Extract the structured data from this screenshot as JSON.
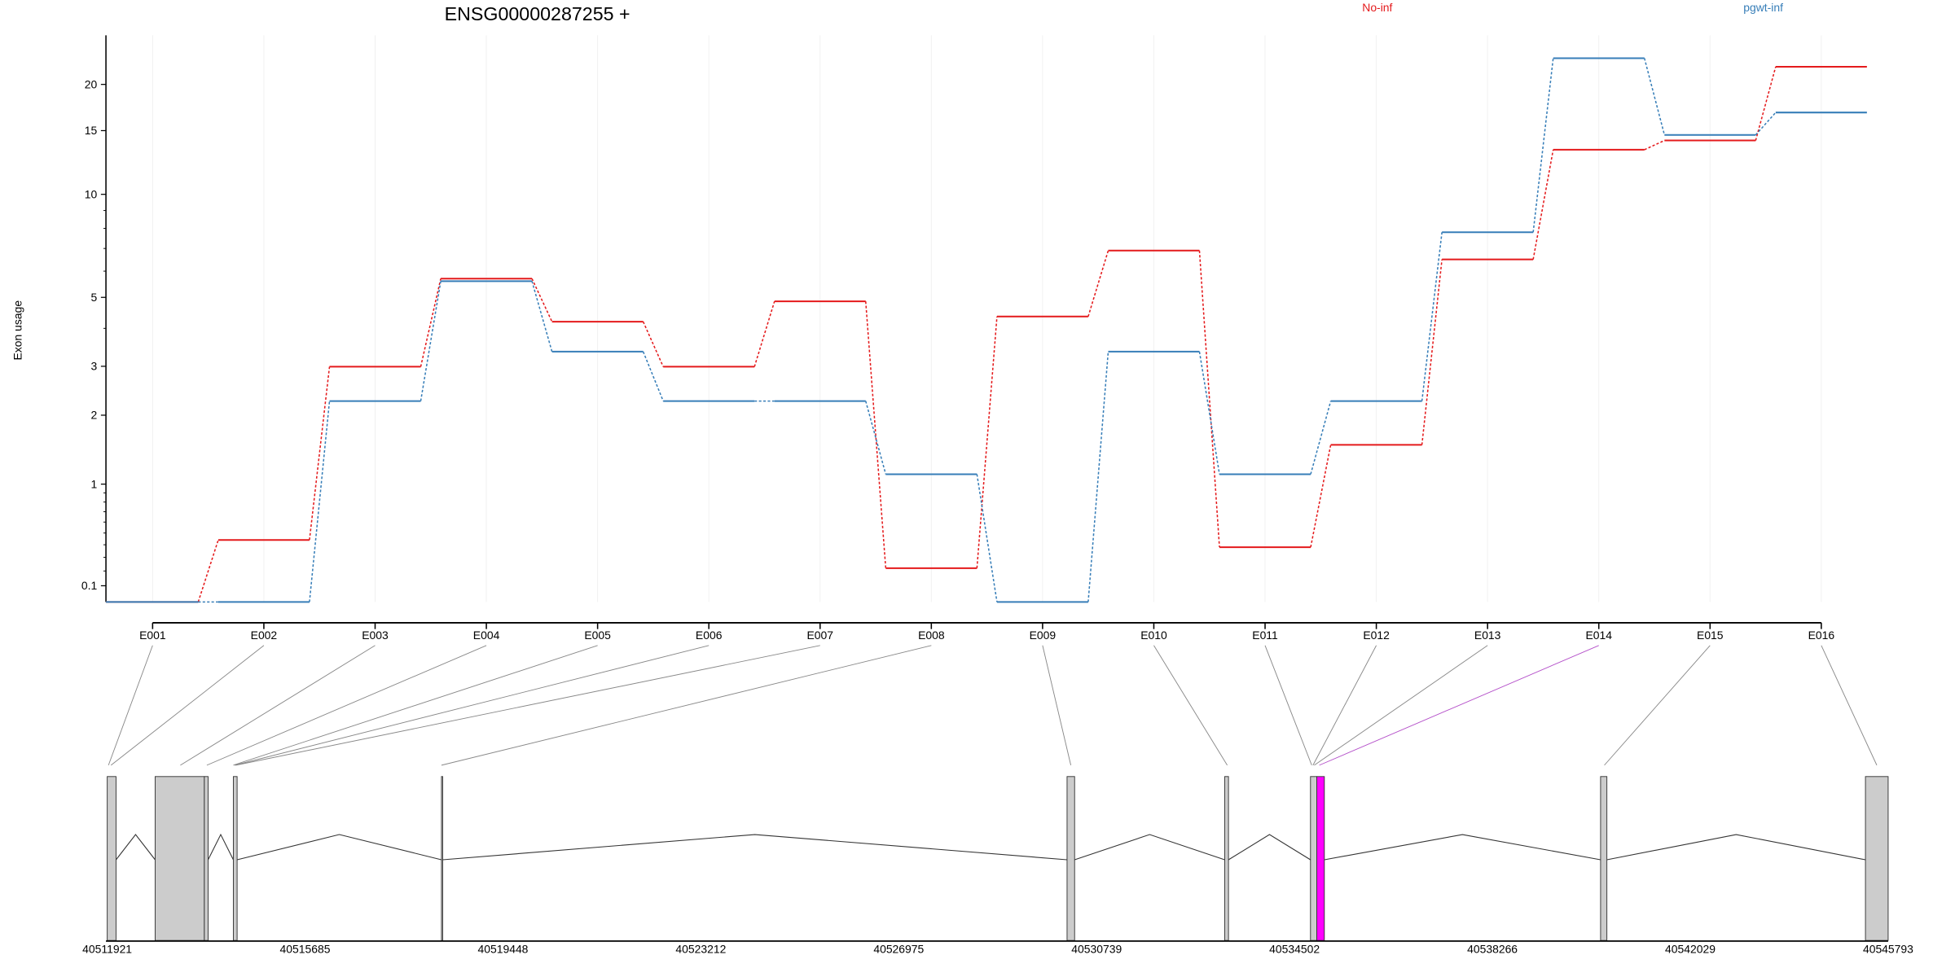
{
  "chart_data": {
    "type": "line",
    "title": "ENSG00000287255 +",
    "ylabel": "Exon usage",
    "xlabel": "",
    "y_scale": "log10(y+1)",
    "ylim": [
      0,
      26
    ],
    "y_ticks": [
      0.1,
      1,
      2,
      3,
      5,
      10,
      15,
      20
    ],
    "y_tick_labels": [
      "0.1",
      "1",
      "2",
      "3",
      "5",
      "10",
      "15",
      "20"
    ],
    "categories": [
      "E001",
      "E002",
      "E003",
      "E004",
      "E005",
      "E006",
      "E007",
      "E008",
      "E009",
      "E010",
      "E011",
      "E012",
      "E013",
      "E014",
      "E015",
      "E016"
    ],
    "series": [
      {
        "name": "No-inf",
        "color": "#e41a1c",
        "values": [
          0,
          0.44,
          2.99,
          5.7,
          4.2,
          2.99,
          4.86,
          0.22,
          4.36,
          6.9,
          0.38,
          1.52,
          6.5,
          13.3,
          14.1,
          22.3
        ]
      },
      {
        "name": "pgwt-inf",
        "color": "#377eb8",
        "values": [
          0,
          0,
          2.26,
          5.6,
          3.36,
          2.26,
          2.26,
          1.12,
          0,
          3.36,
          1.12,
          2.26,
          7.8,
          23.5,
          14.6,
          16.8
        ]
      }
    ],
    "legend": [
      "No-inf",
      "pgwt-inf"
    ],
    "legend_position": "top",
    "highlight_exon": "E014",
    "highlight_color": "#ff00ff",
    "gene_model_coordinate_labels": [
      "40511921",
      "40515685",
      "40519448",
      "40523212",
      "40526975",
      "40530739",
      "40534502",
      "40538266",
      "40542029",
      "40545793"
    ]
  }
}
